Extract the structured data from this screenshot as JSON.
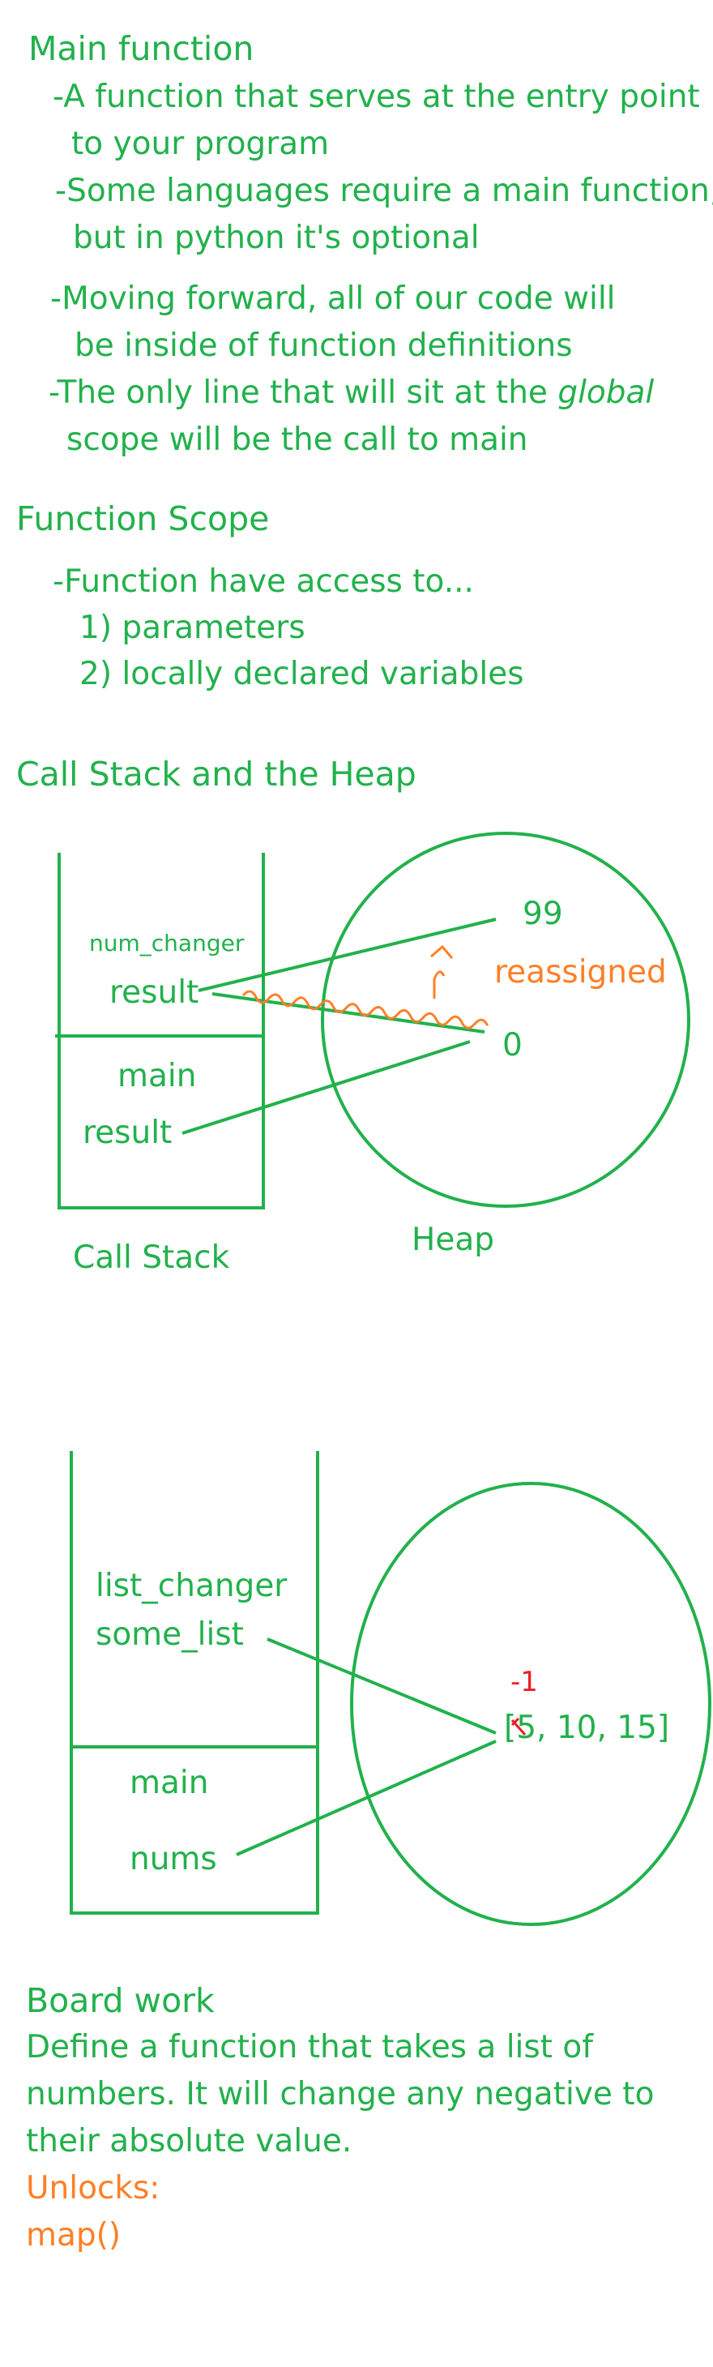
{
  "colors": {
    "green": "#22b14c",
    "orange": "#ff7f27",
    "red": "#ed1c24"
  },
  "main_function": {
    "heading": "Main function",
    "lines": [
      "-A function that serves at the entry point",
      "to your program",
      "-Some languages require a main function,",
      "but in python it's optional",
      "-Moving forward, all of our code will",
      "be inside of function definitions"
    ],
    "global_line": {
      "before": "-The only line that will sit at the ",
      "emphasis": "global",
      "after": ""
    },
    "last_line": "scope will be the call to main"
  },
  "function_scope": {
    "heading": "Function Scope",
    "intro": "-Function have access to...",
    "items": [
      "1) parameters",
      "2) locally declared variables"
    ]
  },
  "call_stack_heap": {
    "heading": "Call Stack and the Heap",
    "frame_top_name": "num_changer",
    "frame_top_var": "result",
    "frame_main_name": "main",
    "frame_main_var": "result",
    "stack_label": "Call Stack",
    "heap_label": "Heap",
    "value_new": "99",
    "value_old": "0",
    "reassigned": "reassigned"
  },
  "list_example": {
    "frame_top_name": "list_changer",
    "frame_top_var": "some_list",
    "frame_main_name": "main",
    "frame_main_var": "nums",
    "list_open": "[",
    "list_first": "5",
    "list_rest": ", 10, 15]",
    "overwrite": "-1"
  },
  "board_work": {
    "heading": "Board work",
    "lines": [
      "Define a function that takes a list of",
      "numbers. It will change any negative to",
      "their absolute value."
    ],
    "unlocks_label": "Unlocks:",
    "unlocks_item": "map()"
  }
}
